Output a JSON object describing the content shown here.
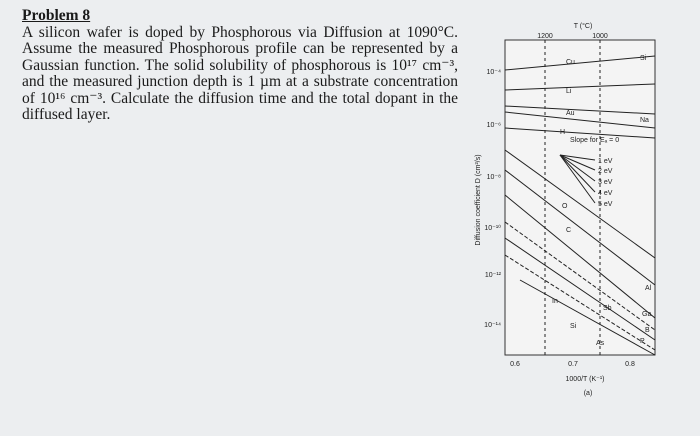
{
  "problem": {
    "title": "Problem 8",
    "body": "A silicon wafer is doped by Phosphorous via Diffusion at 1090°C. Assume the measured Phosphorous profile can be represented by a Gaussian function. The solid solubility of phosphorous is 10¹⁷ cm⁻³, and the measured junction depth is 1 µm at a substrate concentration of 10¹⁶ cm⁻³. Calculate the diffusion time and the total dopant in the diffused layer."
  },
  "figure": {
    "top_axis_title": "T (°C)",
    "top_ticks": [
      "1200",
      "1000"
    ],
    "y_label": "Diffusion coefficient D (cm²/s)",
    "y_ticks": [
      "10⁻⁴",
      "10⁻⁶",
      "10⁻⁸",
      "10⁻¹⁰",
      "10⁻¹²",
      "10⁻¹⁴"
    ],
    "x_ticks": [
      "0.6",
      "0.7",
      "0.8"
    ],
    "x_label": "1000/T (K⁻¹)",
    "caption": "(a)",
    "slope_title": "Slope for Eₐ = 0",
    "slope_labels": [
      "1 eV",
      "2 eV",
      "3 eV",
      "4 eV",
      "5 eV"
    ],
    "element_labels": [
      "Cu",
      "Si",
      "Li",
      "Au",
      "Na",
      "H",
      "O",
      "C",
      "Al",
      "Ga",
      "In",
      "Sb",
      "B",
      "Si",
      "As",
      "P"
    ]
  }
}
